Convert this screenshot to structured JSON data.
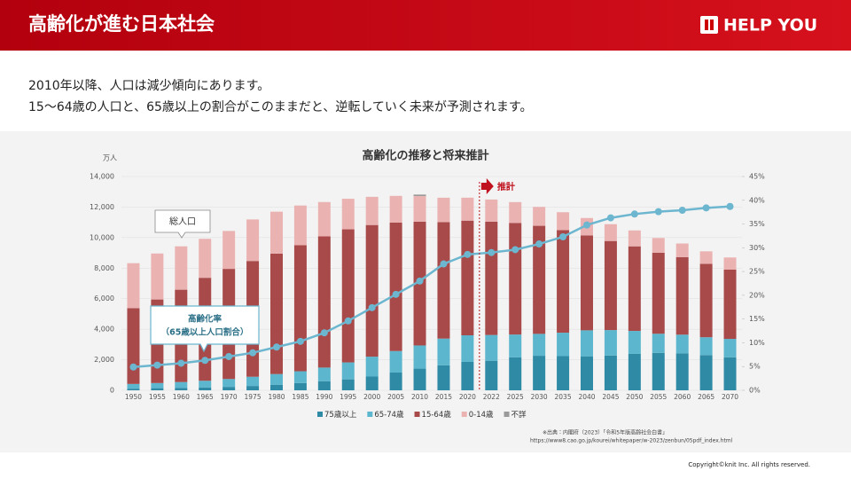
{
  "header": {
    "title": "高齢化が進む日本社会",
    "logo": "HELP YOU"
  },
  "body": {
    "lines": [
      "2010年以降、人口は減少傾向にあります。",
      "15～64歳の人口と、65歳以上の割合がこのままだと、逆転していく未来が予測されます。"
    ]
  },
  "chart_data": {
    "type": "bar",
    "title": "高齢化の推移と将来推計",
    "y_unit": "万人",
    "categories": [
      "1950",
      "1955",
      "1960",
      "1965",
      "1970",
      "1975",
      "1980",
      "1985",
      "1990",
      "1995",
      "2000",
      "2005",
      "2010",
      "2015",
      "2020",
      "2022",
      "2025",
      "2030",
      "2035",
      "2040",
      "2045",
      "2050",
      "2055",
      "2060",
      "2065",
      "2070"
    ],
    "series": [
      {
        "name": "75歳以上",
        "color": "#2f8aa6",
        "values": [
          107,
          139,
          164,
          189,
          224,
          284,
          366,
          471,
          597,
          717,
          901,
          1164,
          1419,
          1632,
          1860,
          1936,
          2155,
          2261,
          2237,
          2227,
          2277,
          2385,
          2451,
          2424,
          2305,
          2160
        ]
      },
      {
        "name": "65-74歳",
        "color": "#5cb6cd",
        "values": [
          309,
          336,
          376,
          435,
          516,
          603,
          699,
          776,
          892,
          1109,
          1301,
          1407,
          1517,
          1755,
          1742,
          1687,
          1498,
          1435,
          1535,
          1701,
          1668,
          1503,
          1253,
          1220,
          1169,
          1206
        ]
      },
      {
        "name": "15-64歳",
        "color": "#a84a4a",
        "values": [
          4966,
          5473,
          6047,
          6744,
          7212,
          7581,
          7883,
          8251,
          8590,
          8716,
          8622,
          8409,
          8103,
          7629,
          7509,
          7421,
          7310,
          7076,
          6722,
          6213,
          5832,
          5540,
          5302,
          5078,
          4809,
          4535
        ]
      },
      {
        "name": "0-14歳",
        "color": "#ebb2b2",
        "values": [
          2943,
          3012,
          2843,
          2553,
          2482,
          2722,
          2751,
          2603,
          2249,
          2001,
          1847,
          1752,
          1680,
          1595,
          1503,
          1450,
          1363,
          1240,
          1169,
          1142,
          1103,
          1041,
          971,
          893,
          817,
          797
        ]
      },
      {
        "name": "不詳",
        "color": "#9a9a9a",
        "values": [
          null,
          null,
          null,
          null,
          null,
          null,
          null,
          null,
          null,
          null,
          null,
          null,
          98,
          null,
          null,
          null,
          null,
          null,
          null,
          null,
          null,
          null,
          null,
          null,
          null,
          null
        ]
      },
      {
        "name": "高齢化率（65歳以上人口割合）",
        "type": "line",
        "axis": "y2",
        "color": "#6cb6cf",
        "values": [
          4.9,
          5.3,
          5.7,
          6.3,
          7.1,
          7.9,
          9.1,
          10.3,
          12.1,
          14.6,
          17.4,
          20.2,
          23.0,
          26.6,
          28.6,
          29.0,
          29.6,
          30.8,
          32.3,
          34.8,
          36.3,
          37.1,
          37.6,
          37.9,
          38.4,
          38.7
        ]
      }
    ],
    "ylim": [
      0,
      14000
    ],
    "yticks": [
      0,
      {
        "value": 2000,
        "label": "2,000"
      },
      {
        "value": 4000,
        "label": "4,000"
      },
      {
        "value": 6000,
        "label": "6,000"
      },
      {
        "value": 8000,
        "label": "8,000"
      },
      {
        "value": 10000,
        "label": "10,000"
      },
      {
        "value": 12000,
        "label": "12,000"
      },
      {
        "value": 14000,
        "label": "14,000"
      }
    ],
    "y2lim": [
      0,
      45
    ],
    "y2ticks": [
      {
        "value": 0,
        "label": "0%"
      },
      {
        "value": 5,
        "label": "5%"
      },
      {
        "value": 10,
        "label": "10%"
      },
      {
        "value": 15,
        "label": "15%"
      },
      {
        "value": 20,
        "label": "20%"
      },
      {
        "value": 25,
        "label": "25%"
      },
      {
        "value": 30,
        "label": "30%"
      },
      {
        "value": 35,
        "label": "35%"
      },
      {
        "value": 40,
        "label": "40%"
      },
      {
        "value": 45,
        "label": "45%"
      }
    ],
    "annotations": {
      "total": "総人口",
      "rate_line1": "高齢化率",
      "rate_line2": "（65歳以上人口割合）",
      "projection": "推計"
    },
    "projection_start": "2022",
    "source": [
      "※出典：内閣府（2023）「令和5年版高齢社会白書」",
      "https://www8.cao.go.jp/kourei/whitepaper/w-2023/zenbun/05pdf_index.html"
    ]
  },
  "footer": {
    "copyright": "Copyright©knit Inc. All rights reserved."
  }
}
